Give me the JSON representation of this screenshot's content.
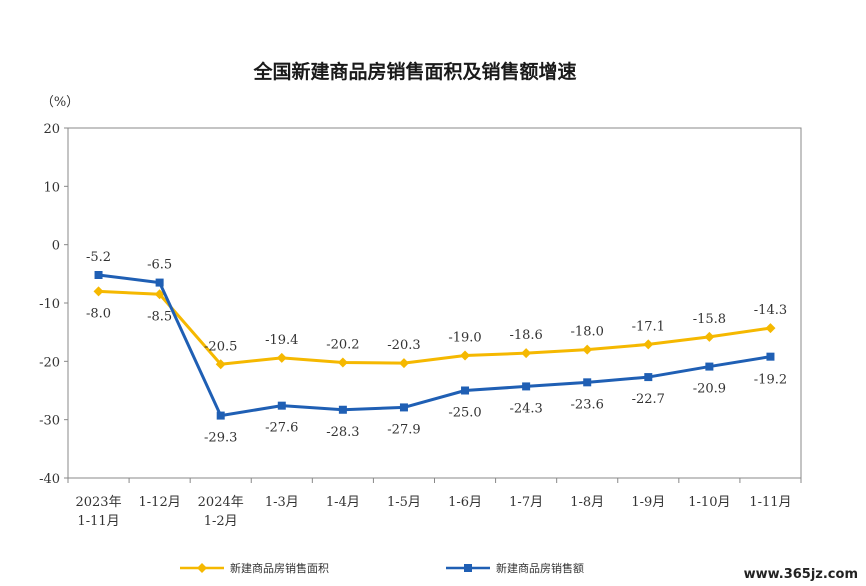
{
  "chart_data": {
    "type": "line",
    "title": "全国新建商品房销售面积及销售额增速",
    "ylabel": "（%）",
    "ylim": [
      -40,
      20
    ],
    "yticks": [
      20,
      10,
      0,
      -10,
      -20,
      -30,
      -40
    ],
    "categories": [
      [
        "2023年",
        "1-11月"
      ],
      [
        "1-12月"
      ],
      [
        "2024年",
        "1-2月"
      ],
      [
        "1-3月"
      ],
      [
        "1-4月"
      ],
      [
        "1-5月"
      ],
      [
        "1-6月"
      ],
      [
        "1-7月"
      ],
      [
        "1-8月"
      ],
      [
        "1-9月"
      ],
      [
        "1-10月"
      ],
      [
        "1-11月"
      ]
    ],
    "series": [
      {
        "name": "新建商品房销售面积",
        "color": "#F5B800",
        "marker": "diamond",
        "values": [
          -8.0,
          -8.5,
          -20.5,
          -19.4,
          -20.2,
          -20.3,
          -19.0,
          -18.6,
          -18.0,
          -17.1,
          -15.8,
          -14.3
        ],
        "labels": [
          "-8.0",
          "-8.5",
          "-20.5",
          "-19.4",
          "-20.2",
          "-20.3",
          "-19.0",
          "-18.6",
          "-18.0",
          "-17.1",
          "-15.8",
          "-14.3"
        ]
      },
      {
        "name": "新建商品房销售额",
        "color": "#1F5FB4",
        "marker": "square",
        "values": [
          -5.2,
          -6.5,
          -29.3,
          -27.6,
          -28.3,
          -27.9,
          -25.0,
          -24.3,
          -23.6,
          -22.7,
          -20.9,
          -19.2
        ],
        "labels": [
          "-5.2",
          "-6.5",
          "-29.3",
          "-27.6",
          "-28.3",
          "-27.9",
          "-25.0",
          "-24.3",
          "-23.6",
          "-22.7",
          "-20.9",
          "-19.2"
        ]
      }
    ],
    "grid": false,
    "legend": "bottom"
  },
  "watermark": "www.365jz.com"
}
